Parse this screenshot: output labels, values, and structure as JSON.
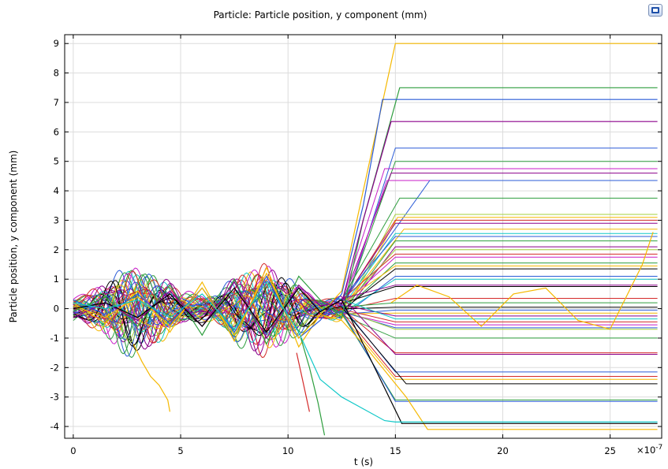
{
  "chart_data": {
    "type": "line",
    "title": "Particle: Particle position, y component (mm)",
    "xlabel": "t (s)",
    "ylabel": "Particle position, y component (mm)",
    "x_scale_label": "×10",
    "x_scale_exponent": "-7",
    "xlim": [
      -0.4,
      27.4
    ],
    "ylim": [
      -4.4,
      9.3
    ],
    "x_ticks": [
      0,
      5,
      10,
      15,
      20,
      25
    ],
    "x_tick_labels": [
      "0",
      "5",
      "10",
      "15",
      "20",
      "25"
    ],
    "y_ticks": [
      -4,
      -3,
      -2,
      -1,
      0,
      1,
      2,
      3,
      4,
      5,
      6,
      7,
      8,
      9
    ],
    "y_tick_labels": [
      "-4",
      "-3",
      "-2",
      "-1",
      "0",
      "1",
      "2",
      "3",
      "4",
      "5",
      "6",
      "7",
      "8",
      "9"
    ],
    "grid": true,
    "x_end": 27.2,
    "highlighted_series": [
      {
        "color": "#f5b800",
        "x": [
          0,
          1.5,
          3,
          4.5,
          6,
          7.5,
          9,
          10.5,
          11.5,
          12.5,
          13.5,
          15,
          27.2
        ],
        "values": [
          0.2,
          -0.5,
          0.6,
          -0.8,
          0.9,
          -1.1,
          1.4,
          -1.3,
          -0.2,
          0.6,
          4.0,
          9.0,
          9.0
        ]
      },
      {
        "color": "#2e9e3e",
        "x": [
          0,
          1.5,
          3,
          4.5,
          6,
          7.5,
          9,
          10.5,
          11.5,
          12.5,
          13.5,
          15.2,
          27.2
        ],
        "values": [
          -0.1,
          0.4,
          -0.6,
          0.8,
          -0.9,
          1.0,
          -1.2,
          1.1,
          0.3,
          -0.3,
          3.0,
          7.5,
          7.5
        ]
      },
      {
        "color": "#2a5bd7",
        "x": [
          0,
          1.5,
          3,
          4.5,
          6,
          7.5,
          9,
          10.5,
          11.5,
          12.5,
          13.5,
          14.4,
          27.2
        ],
        "values": [
          0.3,
          -0.2,
          0.5,
          -0.5,
          0.7,
          -0.8,
          1.1,
          -1.0,
          -0.4,
          0.5,
          3.5,
          7.1,
          7.1
        ]
      },
      {
        "color": "#8b008b",
        "x": [
          0,
          1.5,
          3,
          4.5,
          6,
          7.5,
          9,
          10.5,
          11.5,
          12.5,
          13.5,
          14.8,
          27.2
        ],
        "values": [
          -0.3,
          0.2,
          -0.4,
          0.6,
          -0.6,
          0.9,
          -1.0,
          0.8,
          0.1,
          0.2,
          3.0,
          6.35,
          6.35
        ]
      },
      {
        "color": "#f5b800",
        "x": [
          0,
          1.5,
          3,
          4.5,
          6,
          7.5,
          9,
          10.5,
          11.5,
          12.5,
          13.5,
          15.5,
          16.5,
          27.2
        ],
        "values": [
          0.1,
          -0.3,
          0.4,
          -0.6,
          0.7,
          -0.9,
          1.2,
          -1.0,
          -0.2,
          -0.4,
          -1.2,
          -3.0,
          -4.1,
          -4.1
        ]
      },
      {
        "color": "#000000",
        "x": [
          0,
          1.5,
          3,
          4.5,
          6,
          7.5,
          9,
          10.5,
          11.5,
          12.5,
          13.5,
          15.3,
          27.2
        ],
        "values": [
          0.0,
          0.2,
          -0.3,
          0.5,
          -0.6,
          0.7,
          -0.8,
          0.7,
          -0.1,
          0.3,
          -1.2,
          -3.9,
          -3.9
        ]
      },
      {
        "color": "#10c8c8",
        "x": [
          0,
          1.5,
          3,
          4.5,
          6,
          7.5,
          9,
          10.5,
          11.5,
          12.5,
          13.5,
          14.5,
          15.0,
          27.2
        ],
        "values": [
          0.2,
          0.0,
          0.3,
          -0.3,
          0.5,
          -0.7,
          0.9,
          -0.8,
          -2.4,
          -3.0,
          -3.4,
          -3.8,
          -3.85,
          -3.85
        ]
      },
      {
        "color": "#f5b800",
        "x": [
          2.8,
          3.2,
          3.6,
          4.0,
          4.4,
          4.5
        ],
        "values": [
          -1.2,
          -1.8,
          -2.3,
          -2.6,
          -3.1,
          -3.5
        ]
      },
      {
        "color": "#2e9e3e",
        "x": [
          10.6,
          11.0,
          11.4,
          11.7
        ],
        "values": [
          -1.0,
          -2.0,
          -3.2,
          -4.3
        ]
      },
      {
        "color": "#d42a2a",
        "x": [
          10.4,
          10.7,
          11.0
        ],
        "values": [
          -1.5,
          -2.5,
          -3.5
        ]
      },
      {
        "color": "#f5b800",
        "x": [
          14.8,
          16.0,
          17.5,
          19.0,
          20.5,
          22.0,
          23.5,
          25.0,
          26.5,
          27.0
        ],
        "values": [
          0.2,
          0.8,
          0.4,
          -0.6,
          0.5,
          0.7,
          -0.4,
          -0.7,
          1.5,
          2.6
        ]
      }
    ],
    "bundle_series": [
      {
        "color": "#2a5bd7",
        "final": 5.45,
        "end_x": 15.0
      },
      {
        "color": "#2e9e3e",
        "final": 5.0,
        "end_x": 15.0
      },
      {
        "color": "#c81ec8",
        "final": 4.75,
        "end_x": 14.5
      },
      {
        "color": "#8b008b",
        "final": 4.6,
        "end_x": 14.8
      },
      {
        "color": "#c81ec8",
        "final": 4.35,
        "end_x": 14.6
      },
      {
        "color": "#2a5bd7",
        "final": 4.35,
        "end_x": 16.6
      },
      {
        "color": "#2e9e3e",
        "final": 3.75,
        "end_x": 15.2
      },
      {
        "color": "#a6d23c",
        "final": 3.2,
        "end_x": 15.0
      },
      {
        "color": "#f5b800",
        "final": 3.1,
        "end_x": 15.1
      },
      {
        "color": "#d42a2a",
        "final": 3.0,
        "end_x": 15.0
      },
      {
        "color": "#8b008b",
        "final": 2.9,
        "end_x": 15.0
      },
      {
        "color": "#f5b800",
        "final": 2.7,
        "end_x": 15.4
      },
      {
        "color": "#10c8c8",
        "final": 2.55,
        "end_x": 15.0
      },
      {
        "color": "#2a5bd7",
        "final": 2.45,
        "end_x": 15.0
      },
      {
        "color": "#2e9e3e",
        "final": 2.3,
        "end_x": 15.0
      },
      {
        "color": "#8b008b",
        "final": 2.1,
        "end_x": 15.0
      },
      {
        "color": "#a6d23c",
        "final": 2.0,
        "end_x": 15.0
      },
      {
        "color": "#d42a2a",
        "final": 1.85,
        "end_x": 15.0
      },
      {
        "color": "#c81ec8",
        "final": 1.75,
        "end_x": 15.0
      },
      {
        "color": "#2e9e3e",
        "final": 1.55,
        "end_x": 15.0
      },
      {
        "color": "#f5b800",
        "final": 1.45,
        "end_x": 15.0
      },
      {
        "color": "#000000",
        "final": 1.35,
        "end_x": 15.0
      },
      {
        "color": "#2a5bd7",
        "final": 1.1,
        "end_x": 15.0
      },
      {
        "color": "#10c8c8",
        "final": 1.0,
        "end_x": 15.0
      },
      {
        "color": "#8b008b",
        "final": 0.8,
        "end_x": 15.0
      },
      {
        "color": "#000000",
        "final": 0.75,
        "end_x": 15.0
      },
      {
        "color": "#d42a2a",
        "final": 0.35,
        "end_x": 15.0
      },
      {
        "color": "#2e9e3e",
        "final": 0.2,
        "end_x": 15.0
      },
      {
        "color": "#000000",
        "final": 0.05,
        "end_x": 15.0
      },
      {
        "color": "#2a5bd7",
        "final": -0.05,
        "end_x": 15.0
      },
      {
        "color": "#f5b800",
        "final": -0.15,
        "end_x": 15.0
      },
      {
        "color": "#8b008b",
        "final": -0.25,
        "end_x": 15.0
      },
      {
        "color": "#10c8c8",
        "final": -0.35,
        "end_x": 15.0
      },
      {
        "color": "#d42a2a",
        "final": -0.45,
        "end_x": 15.0
      },
      {
        "color": "#c81ec8",
        "final": -0.55,
        "end_x": 15.0
      },
      {
        "color": "#2a5bd7",
        "final": -0.65,
        "end_x": 15.0
      },
      {
        "color": "#a6d23c",
        "final": -0.7,
        "end_x": 15.0
      },
      {
        "color": "#2e9e3e",
        "final": -1.0,
        "end_x": 15.0
      },
      {
        "color": "#d42a2a",
        "final": -1.5,
        "end_x": 15.0
      },
      {
        "color": "#8b008b",
        "final": -1.55,
        "end_x": 15.0
      },
      {
        "color": "#2a5bd7",
        "final": -2.15,
        "end_x": 15.0
      },
      {
        "color": "#d42a2a",
        "final": -2.3,
        "end_x": 15.0
      },
      {
        "color": "#f5b800",
        "final": -2.4,
        "end_x": 15.0
      },
      {
        "color": "#000000",
        "final": -2.55,
        "end_x": 15.5
      },
      {
        "color": "#2e9e3e",
        "final": -3.1,
        "end_x": 15.0
      },
      {
        "color": "#2a5bd7",
        "final": -3.15,
        "end_x": 15.0
      }
    ]
  }
}
